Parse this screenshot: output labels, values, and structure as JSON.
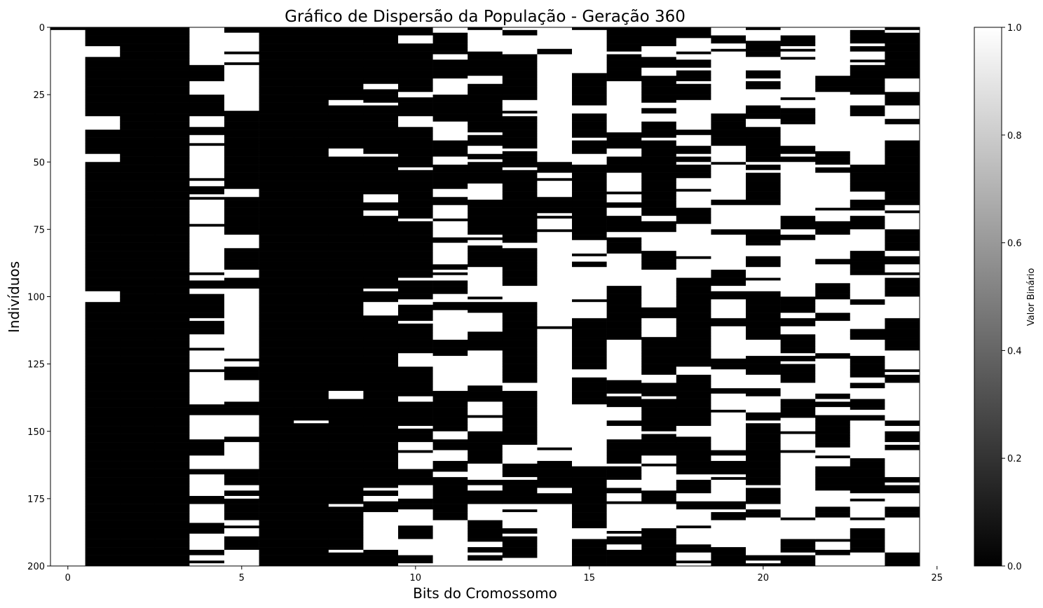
{
  "chart_data": {
    "type": "heatmap",
    "title": "Gráfico de Dispersão da População - Geração 360",
    "xlabel": "Bits do Cromossomo",
    "ylabel": "Indivíduos",
    "xlim": [
      -0.5,
      24.5
    ],
    "ylim": [
      200,
      0
    ],
    "x_ticks": [
      0,
      5,
      10,
      15,
      20,
      25
    ],
    "y_ticks": [
      0,
      25,
      50,
      75,
      100,
      125,
      150,
      175,
      200
    ],
    "n_individuals": 200,
    "n_bits": 25,
    "colormap": "gray",
    "colorbar": {
      "label": "Valor Binário",
      "range": [
        0.0,
        1.0
      ],
      "ticks": [
        "0.0",
        "0.2",
        "0.4",
        "0.6",
        "0.8",
        "1.0"
      ]
    },
    "column_fraction_ones": [
      0.99,
      0.02,
      0.01,
      0.02,
      0.55,
      0.6,
      0.01,
      0.02,
      0.08,
      0.15,
      0.3,
      0.55,
      0.35,
      0.3,
      0.85,
      0.45,
      0.55,
      0.3,
      0.5,
      0.6,
      0.3,
      0.6,
      0.65,
      0.5,
      0.55
    ]
  }
}
